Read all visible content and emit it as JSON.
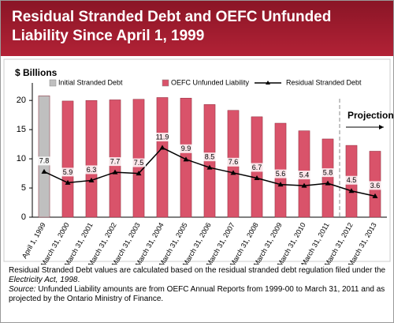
{
  "header": {
    "title": "Residual Stranded Debt and OEFC Unfunded Liability Since April 1, 1999"
  },
  "chart_data": {
    "type": "bar",
    "y_label": "$ Billions",
    "categories": [
      "April 1, 1999",
      "March 31, 2000",
      "March 31, 2001",
      "March 31, 2002",
      "March 31, 2003",
      "March 31, 2004",
      "March 31, 2005",
      "March 31, 2006",
      "March 31, 2007",
      "March 31, 2008",
      "March 31, 2009",
      "March 31, 2010",
      "March 31, 2011",
      "March 31, 2012",
      "March 31, 2013"
    ],
    "series": [
      {
        "name": "Initial Stranded Debt",
        "color": "#bfbfbf",
        "type": "bar",
        "values": [
          20.8,
          null,
          null,
          null,
          null,
          null,
          null,
          null,
          null,
          null,
          null,
          null,
          null,
          null,
          null
        ]
      },
      {
        "name": "OEFC Unfunded Liability",
        "color": "#d9536a",
        "type": "bar",
        "values": [
          null,
          19.9,
          20.0,
          20.1,
          20.2,
          20.5,
          20.4,
          19.3,
          18.3,
          17.2,
          16.1,
          14.8,
          13.4,
          12.3,
          11.3
        ]
      },
      {
        "name": "Residual Stranded Debt",
        "color": "#000000",
        "type": "line",
        "values": [
          7.8,
          5.9,
          6.3,
          7.7,
          7.5,
          11.9,
          9.9,
          8.5,
          7.6,
          6.7,
          5.6,
          5.4,
          5.8,
          4.5,
          3.6
        ]
      }
    ],
    "ylim": [
      0,
      23
    ],
    "yticks": [
      0,
      5,
      10,
      15,
      20
    ],
    "grid": false,
    "annotation": "Projection"
  },
  "notes": {
    "note1": "Residual Stranded Debt values are calculated based on the residual stranded debt regulation filed under the ",
    "note1_italic": "Electricity Act, 1998",
    "note1_end": ".",
    "note2_italic": "Source:",
    "note2": " Unfunded Liability amounts are from OEFC Annual Reports from 1999-00 to March 31, 2011 and as projected by the Ontario Ministry of Finance."
  }
}
